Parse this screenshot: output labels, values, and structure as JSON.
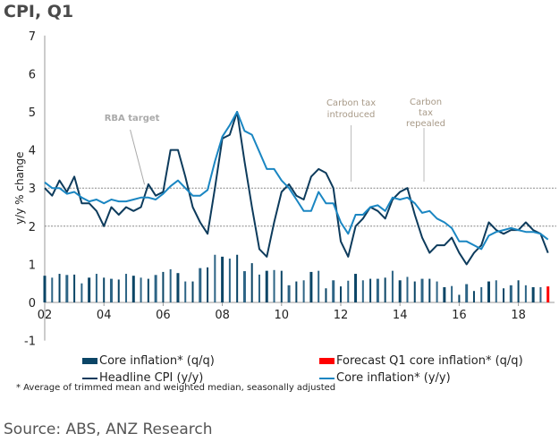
{
  "title": "CPI, Q1",
  "chart_data": {
    "type": "bar+line",
    "title": "CPI, Q1",
    "ylabel": "y/y % change",
    "ylim": [
      -1,
      7
    ],
    "yticks": [
      "-1",
      "0",
      "1",
      "2",
      "3",
      "4",
      "5",
      "6",
      "7"
    ],
    "xticks": [
      "02",
      "04",
      "06",
      "08",
      "10",
      "12",
      "14",
      "16",
      "18"
    ],
    "x_start": "2002 Q1",
    "x_end": "2019 Q1",
    "frequency": "quarterly",
    "reference_lines": [
      2,
      3
    ],
    "annotations": [
      {
        "text": "RBA target",
        "x": 2005.25,
        "y": 3
      },
      {
        "text": "Carbon tax introduced",
        "x": 2012.5,
        "y": 3.05
      },
      {
        "text": "Carbon tax repealed",
        "x": 2014.75,
        "y": 3.05
      }
    ],
    "series": [
      {
        "name": "Core inflation* (q/q)",
        "type": "bar",
        "color": "#0b4566",
        "values": [
          0.7,
          0.65,
          0.75,
          0.72,
          0.73,
          0.5,
          0.65,
          0.75,
          0.65,
          0.62,
          0.6,
          0.75,
          0.7,
          0.65,
          0.62,
          0.72,
          0.8,
          0.87,
          0.77,
          0.55,
          0.55,
          0.9,
          0.92,
          1.25,
          1.2,
          1.15,
          1.25,
          0.82,
          1.03,
          0.73,
          0.83,
          0.85,
          0.83,
          0.45,
          0.55,
          0.58,
          0.8,
          0.83,
          0.37,
          0.58,
          0.42,
          0.57,
          0.75,
          0.58,
          0.62,
          0.62,
          0.65,
          0.83,
          0.58,
          0.67,
          0.55,
          0.62,
          0.62,
          0.55,
          0.4,
          0.43,
          0.2,
          0.48,
          0.3,
          0.4,
          0.55,
          0.58,
          0.37,
          0.45,
          0.58,
          0.45,
          0.4,
          0.4
        ]
      },
      {
        "name": "Forecast Q1 core inflation* (q/q)",
        "type": "bar",
        "color": "#ff0000",
        "values": [
          0.42
        ]
      },
      {
        "name": "Headline CPI (y/y)",
        "type": "line",
        "color": "#0d3b5c",
        "values": [
          3.0,
          2.8,
          3.2,
          2.9,
          3.3,
          2.6,
          2.6,
          2.4,
          2.0,
          2.5,
          2.3,
          2.5,
          2.4,
          2.5,
          3.1,
          2.8,
          2.9,
          4.0,
          4.0,
          3.3,
          2.5,
          2.1,
          1.8,
          3.0,
          4.3,
          4.4,
          5.0,
          3.7,
          2.5,
          1.4,
          1.2,
          2.1,
          2.9,
          3.1,
          2.8,
          2.7,
          3.3,
          3.5,
          3.4,
          3.0,
          1.6,
          1.2,
          2.0,
          2.2,
          2.5,
          2.4,
          2.2,
          2.7,
          2.9,
          3.0,
          2.3,
          1.7,
          1.3,
          1.5,
          1.5,
          1.7,
          1.3,
          1.0,
          1.3,
          1.5,
          2.1,
          1.9,
          1.8,
          1.9,
          1.9,
          2.1,
          1.9,
          1.8,
          1.3
        ]
      },
      {
        "name": "Core inflation* (y/y)",
        "type": "line",
        "color": "#1a86c2",
        "values": [
          3.15,
          3.0,
          3.0,
          2.85,
          2.9,
          2.75,
          2.65,
          2.7,
          2.6,
          2.7,
          2.65,
          2.65,
          2.7,
          2.75,
          2.75,
          2.7,
          2.85,
          3.05,
          3.2,
          3.0,
          2.8,
          2.8,
          2.95,
          3.7,
          4.35,
          4.65,
          5.0,
          4.5,
          4.4,
          3.95,
          3.5,
          3.5,
          3.2,
          3.0,
          2.7,
          2.4,
          2.4,
          2.9,
          2.6,
          2.6,
          2.1,
          1.8,
          2.3,
          2.3,
          2.5,
          2.55,
          2.4,
          2.75,
          2.7,
          2.75,
          2.6,
          2.35,
          2.4,
          2.2,
          2.1,
          1.95,
          1.6,
          1.6,
          1.5,
          1.4,
          1.75,
          1.85,
          1.9,
          1.95,
          1.9,
          1.85,
          1.85,
          1.8,
          1.65
        ]
      }
    ],
    "legend": "bottom",
    "footnote": "* Average of trimmed mean and weighted median, seasonally adjusted",
    "source": "Source: ABS, ANZ Research"
  }
}
